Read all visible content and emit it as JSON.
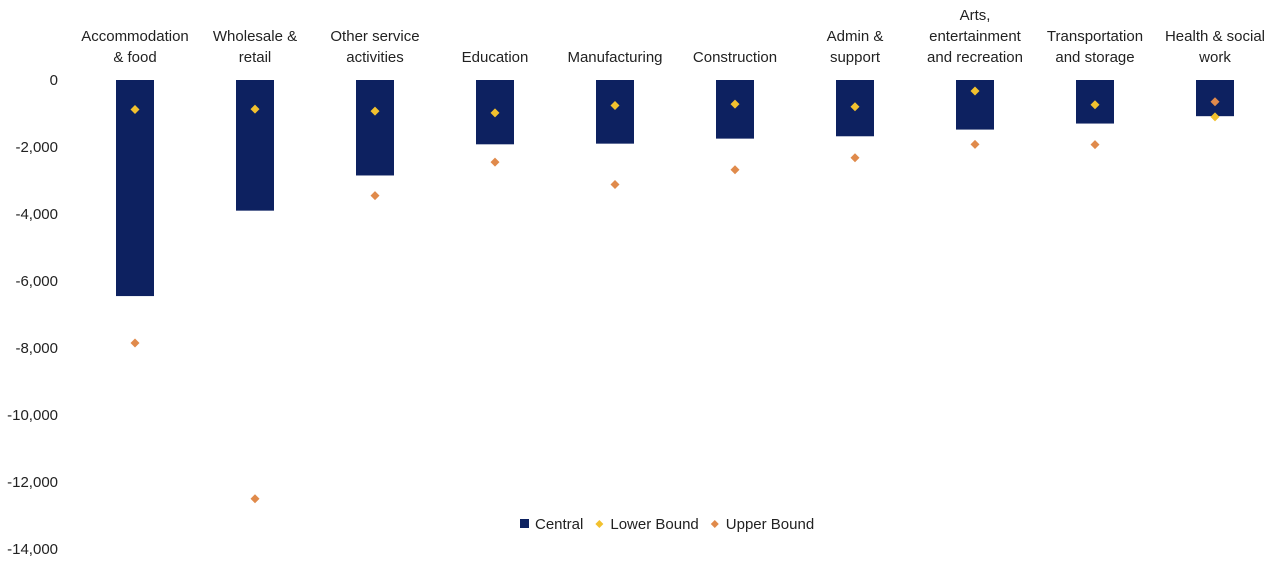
{
  "chart_data": {
    "type": "bar",
    "title": "",
    "xlabel": "",
    "ylabel": "",
    "ylim": [
      -14000,
      0
    ],
    "yticks": [
      0,
      -2000,
      -4000,
      -6000,
      -8000,
      -10000,
      -12000,
      -14000
    ],
    "ytick_labels": [
      "0",
      "-2,000",
      "-4,000",
      "-6,000",
      "-8,000",
      "-10,000",
      "-12,000",
      "-14,000"
    ],
    "grid": false,
    "legend_position": "bottom-center",
    "categories": [
      [
        "Accommodation",
        "& food"
      ],
      [
        "Wholesale &",
        "retail"
      ],
      [
        "Other service",
        "activities"
      ],
      [
        "Education"
      ],
      [
        "Manufacturing"
      ],
      [
        "Construction"
      ],
      [
        "Admin &",
        "support"
      ],
      [
        "Arts,",
        "entertainment",
        "and recreation"
      ],
      [
        "Transportation",
        "and storage"
      ],
      [
        "Health & social",
        "work"
      ]
    ],
    "series": [
      {
        "name": "Central",
        "kind": "bar",
        "color": "#0d2160",
        "values": [
          -6450,
          -3900,
          -2850,
          -1920,
          -1900,
          -1750,
          -1680,
          -1480,
          -1300,
          -1080
        ]
      },
      {
        "name": "Lower Bound",
        "kind": "marker",
        "color": "#f2c12e",
        "values": [
          -880,
          -870,
          -930,
          -980,
          -760,
          -720,
          -800,
          -330,
          -740,
          -1100
        ]
      },
      {
        "name": "Upper Bound",
        "kind": "marker",
        "color": "#e08a4b",
        "values": [
          -7850,
          -12500,
          -3450,
          -2450,
          -3120,
          -2680,
          -2320,
          -1920,
          -1930,
          -650
        ]
      }
    ]
  }
}
